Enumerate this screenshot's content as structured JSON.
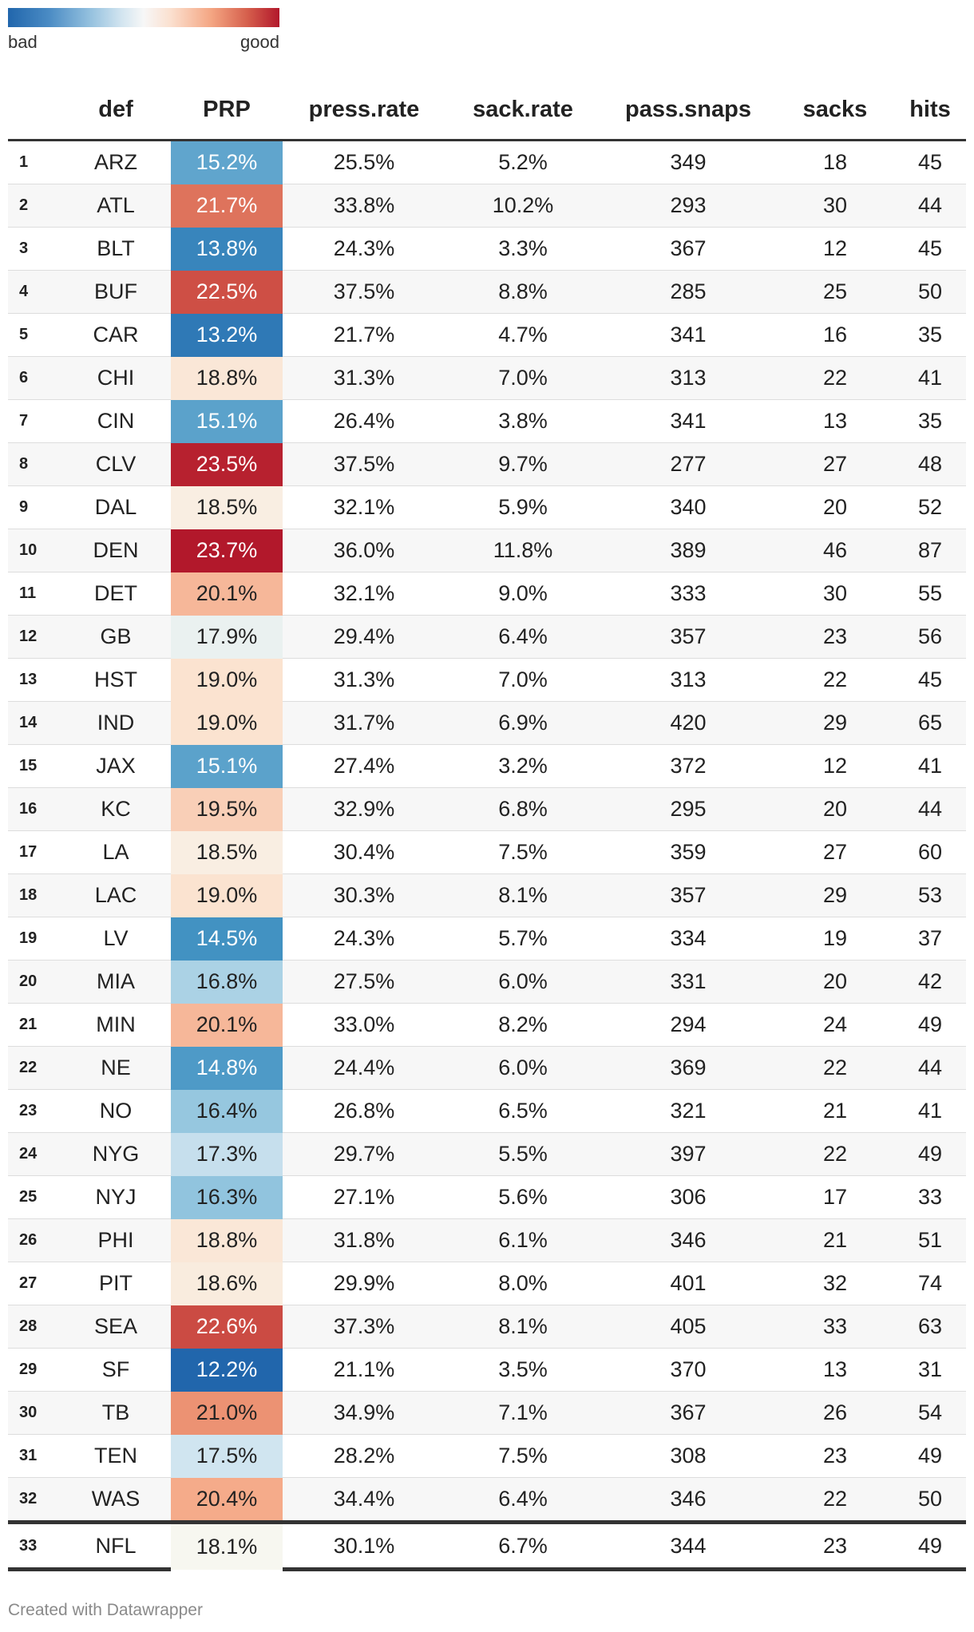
{
  "legend": {
    "low_label": "bad",
    "high_label": "good"
  },
  "chart_data": {
    "type": "table",
    "columns": [
      "",
      "def",
      "PRP",
      "press.rate",
      "sack.rate",
      "pass.snaps",
      "sacks",
      "hits"
    ],
    "color_column": "PRP",
    "color_scale": {
      "min": 12.2,
      "mid": 18.1,
      "max": 23.7,
      "low_color": "#2166ac",
      "mid_color": "#f7f7f7",
      "high_color": "#b2182b"
    },
    "rows": [
      {
        "rank": "1",
        "def": "ARZ",
        "prp": 15.2,
        "prp_label": "15.2%",
        "press_rate": "25.5%",
        "sack_rate": "5.2%",
        "pass_snaps": "349",
        "sacks": "18",
        "hits": "45"
      },
      {
        "rank": "2",
        "def": "ATL",
        "prp": 21.7,
        "prp_label": "21.7%",
        "press_rate": "33.8%",
        "sack_rate": "10.2%",
        "pass_snaps": "293",
        "sacks": "30",
        "hits": "44"
      },
      {
        "rank": "3",
        "def": "BLT",
        "prp": 13.8,
        "prp_label": "13.8%",
        "press_rate": "24.3%",
        "sack_rate": "3.3%",
        "pass_snaps": "367",
        "sacks": "12",
        "hits": "45"
      },
      {
        "rank": "4",
        "def": "BUF",
        "prp": 22.5,
        "prp_label": "22.5%",
        "press_rate": "37.5%",
        "sack_rate": "8.8%",
        "pass_snaps": "285",
        "sacks": "25",
        "hits": "50"
      },
      {
        "rank": "5",
        "def": "CAR",
        "prp": 13.2,
        "prp_label": "13.2%",
        "press_rate": "21.7%",
        "sack_rate": "4.7%",
        "pass_snaps": "341",
        "sacks": "16",
        "hits": "35"
      },
      {
        "rank": "6",
        "def": "CHI",
        "prp": 18.8,
        "prp_label": "18.8%",
        "press_rate": "31.3%",
        "sack_rate": "7.0%",
        "pass_snaps": "313",
        "sacks": "22",
        "hits": "41"
      },
      {
        "rank": "7",
        "def": "CIN",
        "prp": 15.1,
        "prp_label": "15.1%",
        "press_rate": "26.4%",
        "sack_rate": "3.8%",
        "pass_snaps": "341",
        "sacks": "13",
        "hits": "35"
      },
      {
        "rank": "8",
        "def": "CLV",
        "prp": 23.5,
        "prp_label": "23.5%",
        "press_rate": "37.5%",
        "sack_rate": "9.7%",
        "pass_snaps": "277",
        "sacks": "27",
        "hits": "48"
      },
      {
        "rank": "9",
        "def": "DAL",
        "prp": 18.5,
        "prp_label": "18.5%",
        "press_rate": "32.1%",
        "sack_rate": "5.9%",
        "pass_snaps": "340",
        "sacks": "20",
        "hits": "52"
      },
      {
        "rank": "10",
        "def": "DEN",
        "prp": 23.7,
        "prp_label": "23.7%",
        "press_rate": "36.0%",
        "sack_rate": "11.8%",
        "pass_snaps": "389",
        "sacks": "46",
        "hits": "87"
      },
      {
        "rank": "11",
        "def": "DET",
        "prp": 20.1,
        "prp_label": "20.1%",
        "press_rate": "32.1%",
        "sack_rate": "9.0%",
        "pass_snaps": "333",
        "sacks": "30",
        "hits": "55"
      },
      {
        "rank": "12",
        "def": "GB",
        "prp": 17.9,
        "prp_label": "17.9%",
        "press_rate": "29.4%",
        "sack_rate": "6.4%",
        "pass_snaps": "357",
        "sacks": "23",
        "hits": "56"
      },
      {
        "rank": "13",
        "def": "HST",
        "prp": 19.0,
        "prp_label": "19.0%",
        "press_rate": "31.3%",
        "sack_rate": "7.0%",
        "pass_snaps": "313",
        "sacks": "22",
        "hits": "45"
      },
      {
        "rank": "14",
        "def": "IND",
        "prp": 19.0,
        "prp_label": "19.0%",
        "press_rate": "31.7%",
        "sack_rate": "6.9%",
        "pass_snaps": "420",
        "sacks": "29",
        "hits": "65"
      },
      {
        "rank": "15",
        "def": "JAX",
        "prp": 15.1,
        "prp_label": "15.1%",
        "press_rate": "27.4%",
        "sack_rate": "3.2%",
        "pass_snaps": "372",
        "sacks": "12",
        "hits": "41"
      },
      {
        "rank": "16",
        "def": "KC",
        "prp": 19.5,
        "prp_label": "19.5%",
        "press_rate": "32.9%",
        "sack_rate": "6.8%",
        "pass_snaps": "295",
        "sacks": "20",
        "hits": "44"
      },
      {
        "rank": "17",
        "def": "LA",
        "prp": 18.5,
        "prp_label": "18.5%",
        "press_rate": "30.4%",
        "sack_rate": "7.5%",
        "pass_snaps": "359",
        "sacks": "27",
        "hits": "60"
      },
      {
        "rank": "18",
        "def": "LAC",
        "prp": 19.0,
        "prp_label": "19.0%",
        "press_rate": "30.3%",
        "sack_rate": "8.1%",
        "pass_snaps": "357",
        "sacks": "29",
        "hits": "53"
      },
      {
        "rank": "19",
        "def": "LV",
        "prp": 14.5,
        "prp_label": "14.5%",
        "press_rate": "24.3%",
        "sack_rate": "5.7%",
        "pass_snaps": "334",
        "sacks": "19",
        "hits": "37"
      },
      {
        "rank": "20",
        "def": "MIA",
        "prp": 16.8,
        "prp_label": "16.8%",
        "press_rate": "27.5%",
        "sack_rate": "6.0%",
        "pass_snaps": "331",
        "sacks": "20",
        "hits": "42"
      },
      {
        "rank": "21",
        "def": "MIN",
        "prp": 20.1,
        "prp_label": "20.1%",
        "press_rate": "33.0%",
        "sack_rate": "8.2%",
        "pass_snaps": "294",
        "sacks": "24",
        "hits": "49"
      },
      {
        "rank": "22",
        "def": "NE",
        "prp": 14.8,
        "prp_label": "14.8%",
        "press_rate": "24.4%",
        "sack_rate": "6.0%",
        "pass_snaps": "369",
        "sacks": "22",
        "hits": "44"
      },
      {
        "rank": "23",
        "def": "NO",
        "prp": 16.4,
        "prp_label": "16.4%",
        "press_rate": "26.8%",
        "sack_rate": "6.5%",
        "pass_snaps": "321",
        "sacks": "21",
        "hits": "41"
      },
      {
        "rank": "24",
        "def": "NYG",
        "prp": 17.3,
        "prp_label": "17.3%",
        "press_rate": "29.7%",
        "sack_rate": "5.5%",
        "pass_snaps": "397",
        "sacks": "22",
        "hits": "49"
      },
      {
        "rank": "25",
        "def": "NYJ",
        "prp": 16.3,
        "prp_label": "16.3%",
        "press_rate": "27.1%",
        "sack_rate": "5.6%",
        "pass_snaps": "306",
        "sacks": "17",
        "hits": "33"
      },
      {
        "rank": "26",
        "def": "PHI",
        "prp": 18.8,
        "prp_label": "18.8%",
        "press_rate": "31.8%",
        "sack_rate": "6.1%",
        "pass_snaps": "346",
        "sacks": "21",
        "hits": "51"
      },
      {
        "rank": "27",
        "def": "PIT",
        "prp": 18.6,
        "prp_label": "18.6%",
        "press_rate": "29.9%",
        "sack_rate": "8.0%",
        "pass_snaps": "401",
        "sacks": "32",
        "hits": "74"
      },
      {
        "rank": "28",
        "def": "SEA",
        "prp": 22.6,
        "prp_label": "22.6%",
        "press_rate": "37.3%",
        "sack_rate": "8.1%",
        "pass_snaps": "405",
        "sacks": "33",
        "hits": "63"
      },
      {
        "rank": "29",
        "def": "SF",
        "prp": 12.2,
        "prp_label": "12.2%",
        "press_rate": "21.1%",
        "sack_rate": "3.5%",
        "pass_snaps": "370",
        "sacks": "13",
        "hits": "31"
      },
      {
        "rank": "30",
        "def": "TB",
        "prp": 21.0,
        "prp_label": "21.0%",
        "press_rate": "34.9%",
        "sack_rate": "7.1%",
        "pass_snaps": "367",
        "sacks": "26",
        "hits": "54"
      },
      {
        "rank": "31",
        "def": "TEN",
        "prp": 17.5,
        "prp_label": "17.5%",
        "press_rate": "28.2%",
        "sack_rate": "7.5%",
        "pass_snaps": "308",
        "sacks": "23",
        "hits": "49"
      },
      {
        "rank": "32",
        "def": "WAS",
        "prp": 20.4,
        "prp_label": "20.4%",
        "press_rate": "34.4%",
        "sack_rate": "6.4%",
        "pass_snaps": "346",
        "sacks": "22",
        "hits": "50"
      }
    ],
    "summary_row": {
      "rank": "33",
      "def": "NFL",
      "prp": 18.1,
      "prp_label": "18.1%",
      "press_rate": "30.1%",
      "sack_rate": "6.7%",
      "pass_snaps": "344",
      "sacks": "23",
      "hits": "49"
    }
  },
  "footer": "Created with Datawrapper"
}
